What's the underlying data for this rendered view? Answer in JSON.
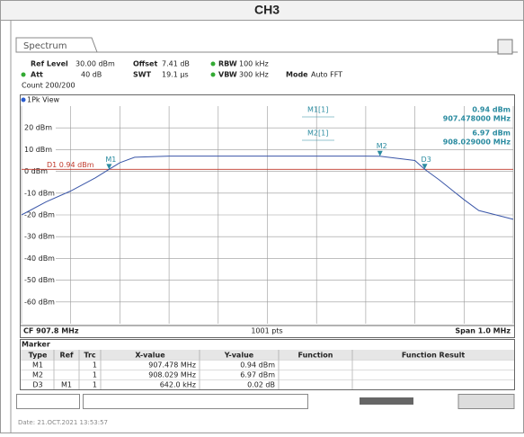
{
  "header": {
    "title": "CH3"
  },
  "tab": "Spectrum",
  "settings": {
    "ref_level": {
      "label": "Ref Level",
      "value": "30.00 dBm"
    },
    "offset": {
      "label": "Offset",
      "value": "7.41 dB"
    },
    "rbw": {
      "label": "RBW",
      "value": "100 kHz"
    },
    "att": {
      "label": "Att",
      "value": "40 dB"
    },
    "swt": {
      "label": "SWT",
      "value": "19.1 µs"
    },
    "vbw": {
      "label": "VBW",
      "value": "300 kHz"
    },
    "mode": {
      "label": "Mode",
      "value": "Auto FFT"
    },
    "count": "Count 200/200"
  },
  "chart_data": {
    "type": "line",
    "view": "1Pk View",
    "x": [
      907.3,
      907.35,
      907.4,
      907.45,
      907.478,
      907.5,
      907.53,
      907.6,
      907.7,
      907.8,
      907.9,
      908.0,
      908.029,
      908.1,
      908.12,
      908.15,
      908.2,
      908.23,
      908.3
    ],
    "series": [
      {
        "name": "Trace 1",
        "color": "#3a56a8",
        "values": [
          -20,
          -14,
          -9,
          -3,
          0.94,
          4,
          6.5,
          7,
          7,
          7,
          7,
          7,
          6.97,
          5,
          0.96,
          -4,
          -13,
          -18,
          -22
        ]
      }
    ],
    "xlim": [
      907.3,
      908.3
    ],
    "ylim": [
      -70,
      30
    ],
    "yticks": [
      {
        "value": 20,
        "label": "20 dBm"
      },
      {
        "value": 10,
        "label": "10 dBm"
      },
      {
        "value": 0,
        "label": "0 dBm"
      },
      {
        "value": -10,
        "label": "-10 dBm"
      },
      {
        "value": -20,
        "label": "-20 dBm"
      },
      {
        "value": -30,
        "label": "-30 dBm"
      },
      {
        "value": -40,
        "label": "-40 dBm"
      },
      {
        "value": -50,
        "label": "-50 dBm"
      },
      {
        "value": -60,
        "label": "-60 dBm"
      }
    ],
    "grid": true,
    "display_line": {
      "label": "D1 0.94 dBm",
      "value": 0.94,
      "color": "#c0392b"
    },
    "markers": [
      {
        "label": "M1",
        "x": 907.478,
        "y": 0.94
      },
      {
        "label": "M2",
        "x": 908.029,
        "y": 6.97
      },
      {
        "label": "D3",
        "x": 908.12,
        "y": 0.96
      }
    ],
    "marker_info": [
      {
        "name": "M1[1]",
        "level": "0.94 dBm",
        "freq": "907.478000 MHz"
      },
      {
        "name": "M2[1]",
        "level": "6.97 dBm",
        "freq": "908.029000 MHz"
      }
    ],
    "footer": {
      "center": "CF 907.8 MHz",
      "points": "1001 pts",
      "span": "Span 1.0 MHz"
    }
  },
  "marker_table": {
    "title": "Marker",
    "columns": [
      "Type",
      "Ref",
      "Trc",
      "X-value",
      "Y-value",
      "Function",
      "Function Result"
    ],
    "rows": [
      [
        "M1",
        "",
        "1",
        "907.478 MHz",
        "0.94 dBm",
        "",
        ""
      ],
      [
        "M2",
        "",
        "1",
        "908.029 MHz",
        "6.97 dBm",
        "",
        ""
      ],
      [
        "D3",
        "M1",
        "1",
        "642.0 kHz",
        "0.02 dB",
        "",
        ""
      ]
    ]
  },
  "date": "Date: 21.OCT.2021 13:53:57"
}
